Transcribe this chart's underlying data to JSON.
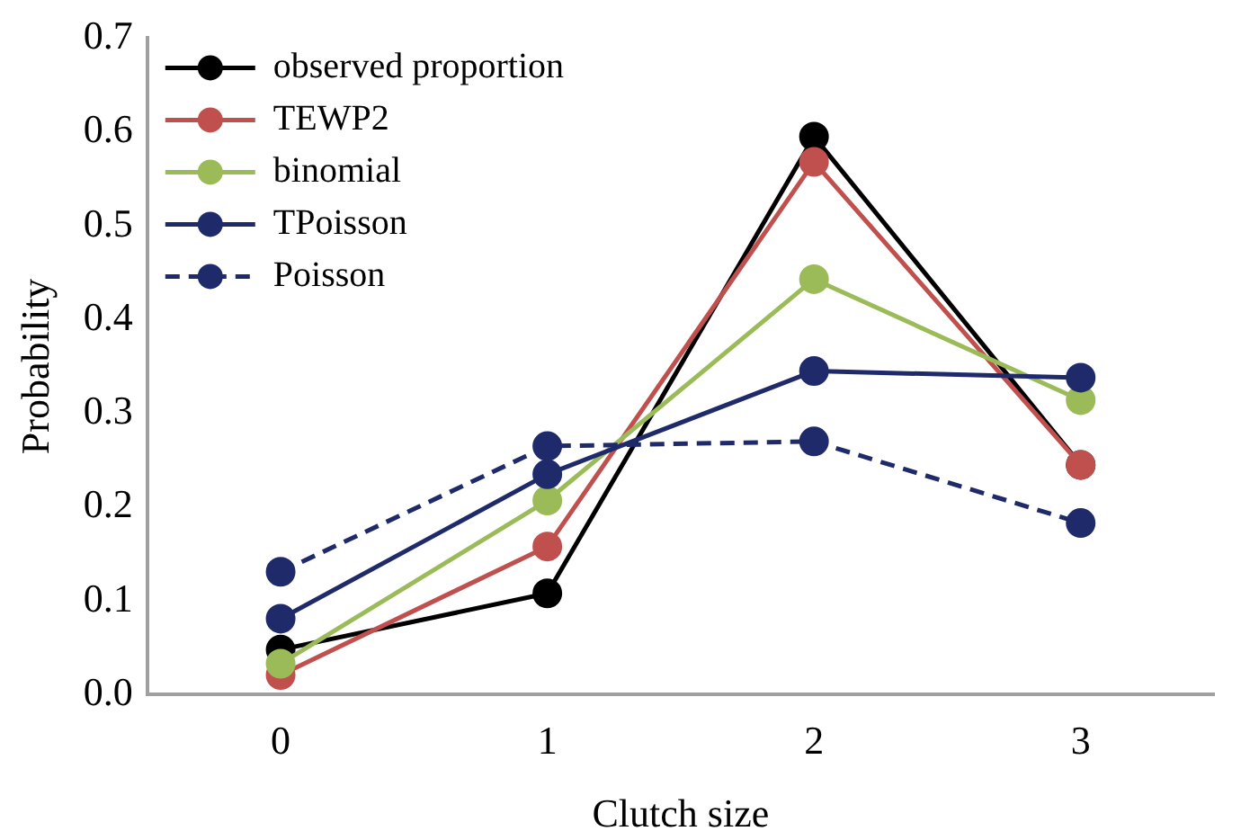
{
  "chart_data": {
    "type": "line",
    "xlabel": "Clutch size",
    "ylabel": "Probability",
    "categories": [
      "0",
      "1",
      "2",
      "3"
    ],
    "ylim": [
      0,
      0.7
    ],
    "yticks": [
      {
        "value": 0,
        "label": "0.0"
      },
      0.1,
      0.2,
      0.3,
      0.4,
      0.5,
      0.6,
      0.7
    ],
    "grid": false,
    "legend": "top left",
    "marker": "circle",
    "series": [
      {
        "name": "observed proportion",
        "color": "#000000",
        "line_style": "solid",
        "values": [
          0.048,
          0.108,
          0.595,
          0.245
        ]
      },
      {
        "name": "TEWP2",
        "color": "#c0504d",
        "line_style": "solid",
        "values": [
          0.021,
          0.158,
          0.568,
          0.245
        ]
      },
      {
        "name": "binomial",
        "color": "#9bbb59",
        "line_style": "solid",
        "values": [
          0.033,
          0.207,
          0.443,
          0.314
        ]
      },
      {
        "name": "TPoisson",
        "color": "#1f2a6b",
        "line_style": "solid",
        "values": [
          0.081,
          0.235,
          0.345,
          0.338
        ]
      },
      {
        "name": "Poisson",
        "color": "#1f2a6b",
        "line_style": "dashed",
        "values": [
          0.131,
          0.265,
          0.27,
          0.183
        ]
      }
    ]
  }
}
